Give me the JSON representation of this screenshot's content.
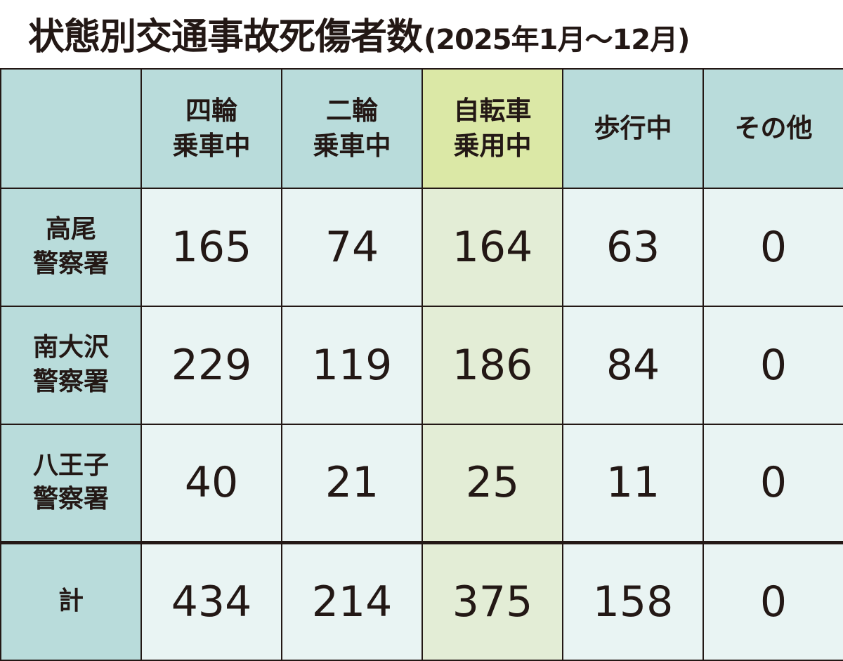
{
  "title": "状態別交通事故死傷者数",
  "subtitle": "(2025年1月〜12月)",
  "colors": {
    "header_bg": "#b9dcdb",
    "highlight_header_bg": "#dbe8a6",
    "cell_bg": "#e9f4f3",
    "highlight_cell_bg": "#e3edd6"
  },
  "chart_data": {
    "type": "table",
    "title": "状態別交通事故死傷者数(2025年1月〜12月)",
    "columns": [
      {
        "line1": "四輪",
        "line2": "乗車中"
      },
      {
        "line1": "二輪",
        "line2": "乗車中"
      },
      {
        "line1": "自転車",
        "line2": "乗用中"
      },
      {
        "line1": "歩行中",
        "line2": ""
      },
      {
        "line1": "その他",
        "line2": ""
      }
    ],
    "highlighted_column": 2,
    "rows": [
      {
        "line1": "高尾",
        "line2": "警察署",
        "values": [
          165,
          74,
          164,
          63,
          0
        ]
      },
      {
        "line1": "南大沢",
        "line2": "警察署",
        "values": [
          229,
          119,
          186,
          84,
          0
        ]
      },
      {
        "line1": "八王子",
        "line2": "警察署",
        "values": [
          40,
          21,
          25,
          11,
          0
        ]
      }
    ],
    "total": {
      "label": "計",
      "values": [
        434,
        214,
        375,
        158,
        0
      ]
    }
  }
}
